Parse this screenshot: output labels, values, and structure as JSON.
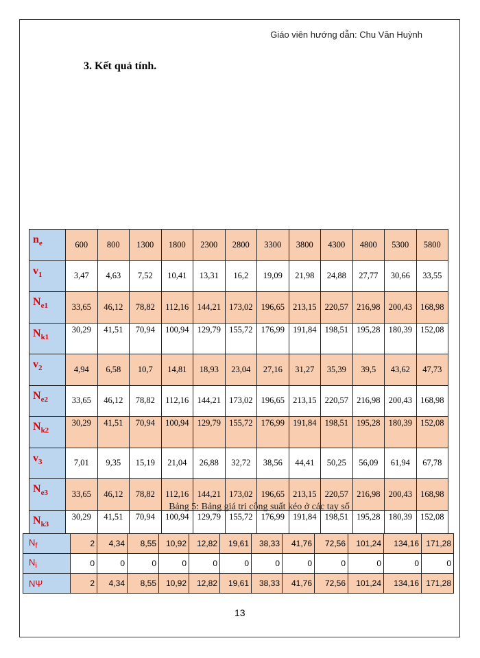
{
  "header": "Giáo viên hướng dẫn: Chu Văn Huỳnh",
  "heading": "3.  Kết quả tính.",
  "table1": {
    "rows": [
      {
        "sym": "n",
        "sub": "e",
        "values": [
          "600",
          "800",
          "1300",
          "1800",
          "2300",
          "2800",
          "3300",
          "3800",
          "4300",
          "4800",
          "5300",
          "5800"
        ]
      },
      {
        "sym": "v",
        "sub": "1",
        "values": [
          "3,47",
          "4,63",
          "7,52",
          "10,41",
          "13,31",
          "16,2",
          "19,09",
          "21,98",
          "24,88",
          "27,77",
          "30,66",
          "33,55"
        ]
      },
      {
        "sym": "N",
        "sub": "e1",
        "values": [
          "33,65",
          "46,12",
          "78,82",
          "112,16",
          "144,21",
          "173,02",
          "196,65",
          "213,15",
          "220,57",
          "216,98",
          "200,43",
          "168,98"
        ]
      },
      {
        "sym": "N",
        "sub": "k1",
        "values": [
          "30,29",
          "41,51",
          "70,94",
          "100,94",
          "129,79",
          "155,72",
          "176,99",
          "191,84",
          "198,51",
          "195,28",
          "180,39",
          "152,08"
        ]
      },
      {
        "sym": "v",
        "sub": "2",
        "values": [
          "4,94",
          "6,58",
          "10,7",
          "14,81",
          "18,93",
          "23,04",
          "27,16",
          "31,27",
          "35,39",
          "39,5",
          "43,62",
          "47,73"
        ]
      },
      {
        "sym": "N",
        "sub": "e2",
        "values": [
          "33,65",
          "46,12",
          "78,82",
          "112,16",
          "144,21",
          "173,02",
          "196,65",
          "213,15",
          "220,57",
          "216,98",
          "200,43",
          "168,98"
        ]
      },
      {
        "sym": "N",
        "sub": "k2",
        "values": [
          "30,29",
          "41,51",
          "70,94",
          "100,94",
          "129,79",
          "155,72",
          "176,99",
          "191,84",
          "198,51",
          "195,28",
          "180,39",
          "152,08"
        ]
      },
      {
        "sym": "v",
        "sub": "3",
        "values": [
          "7,01",
          "9,35",
          "15,19",
          "21,04",
          "26,88",
          "32,72",
          "38,56",
          "44,41",
          "50,25",
          "56,09",
          "61,94",
          "67,78"
        ]
      },
      {
        "sym": "N",
        "sub": "e3",
        "values": [
          "33,65",
          "46,12",
          "78,82",
          "112,16",
          "144,21",
          "173,02",
          "196,65",
          "213,15",
          "220,57",
          "216,98",
          "200,43",
          "168,98"
        ]
      },
      {
        "sym": "N",
        "sub": "k3",
        "values": [
          "30,29",
          "41,51",
          "70,94",
          "100,94",
          "129,79",
          "155,72",
          "176,99",
          "191,84",
          "198,51",
          "195,28",
          "180,39",
          "152,08"
        ]
      }
    ],
    "caption": "Bảng 5: Bảng giá trị công suất kéo ở các tay số"
  },
  "table2": {
    "rows": [
      {
        "sym": "N",
        "sub": "f",
        "values": [
          "2",
          "4,34",
          "8,55",
          "10,92",
          "12,82",
          "19,61",
          "38,33",
          "41,76",
          "72,56",
          "101,24",
          "134,16",
          "171,28"
        ]
      },
      {
        "sym": "N",
        "sub": "i",
        "values": [
          "0",
          "0",
          "0",
          "0",
          "0",
          "0",
          "0",
          "0",
          "0",
          "0",
          "0",
          "0"
        ]
      },
      {
        "sym": "NΨ",
        "sub": "",
        "values": [
          "2",
          "4,34",
          "8,55",
          "10,92",
          "12,82",
          "19,61",
          "38,33",
          "41,76",
          "72,56",
          "101,24",
          "134,16",
          "171,28"
        ]
      }
    ]
  },
  "page_number": "13",
  "colors": {
    "label_bg": "#bcd6f0",
    "shaded_bg": "#f8cdb0",
    "label_text": "#e00000"
  }
}
